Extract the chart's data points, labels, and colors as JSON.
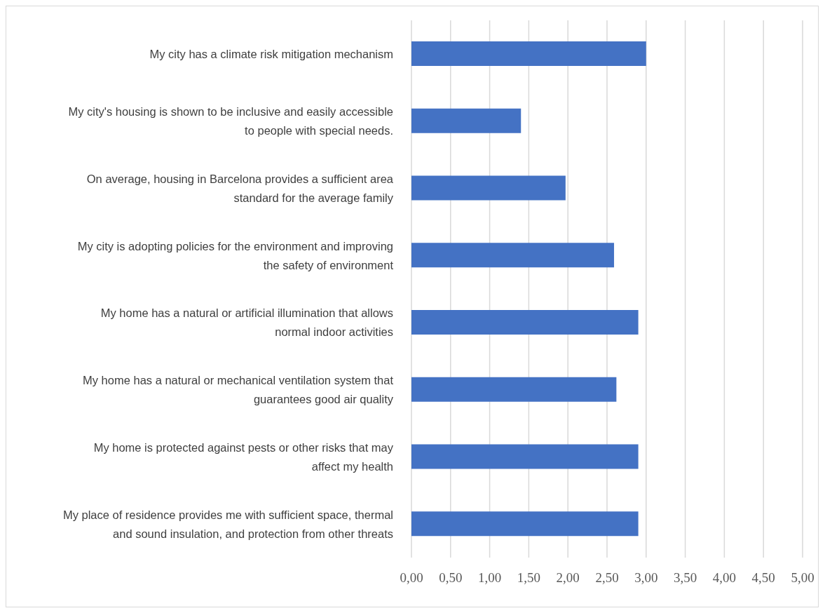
{
  "chart_data": {
    "type": "bar",
    "orientation": "horizontal",
    "categories": [
      "My city has a climate risk mitigation mechanism",
      "My city's housing is shown to be inclusive and easily accessible to people with special needs.",
      "On average, housing in Barcelona provides a sufficient area standard for the average family",
      "My city is adopting policies for the environment and improving the safety of environment",
      "My home has a natural or artificial illumination that allows normal indoor activities",
      "My home has a natural or mechanical ventilation system that guarantees good air quality",
      "My home is protected against pests or other risks that may affect my health",
      "My place of residence provides me with sufficient space, thermal and sound insulation, and protection from other threats"
    ],
    "values": [
      3.0,
      1.4,
      1.97,
      2.59,
      2.9,
      2.62,
      2.9,
      2.9
    ],
    "color": "#4472c4",
    "xlim": [
      0,
      5
    ],
    "xticks": [
      {
        "value": 0,
        "label": "0,00"
      },
      {
        "value": 0.5,
        "label": "0,50"
      },
      {
        "value": 1,
        "label": "1,00"
      },
      {
        "value": 1.5,
        "label": "1,50"
      },
      {
        "value": 2,
        "label": "2,00"
      },
      {
        "value": 2.5,
        "label": "2,50"
      },
      {
        "value": 3,
        "label": "3,00"
      },
      {
        "value": 3.5,
        "label": "3,50"
      },
      {
        "value": 4,
        "label": "4,00"
      },
      {
        "value": 4.5,
        "label": "4,50"
      },
      {
        "value": 5,
        "label": "5,00"
      }
    ],
    "grid": "x"
  }
}
